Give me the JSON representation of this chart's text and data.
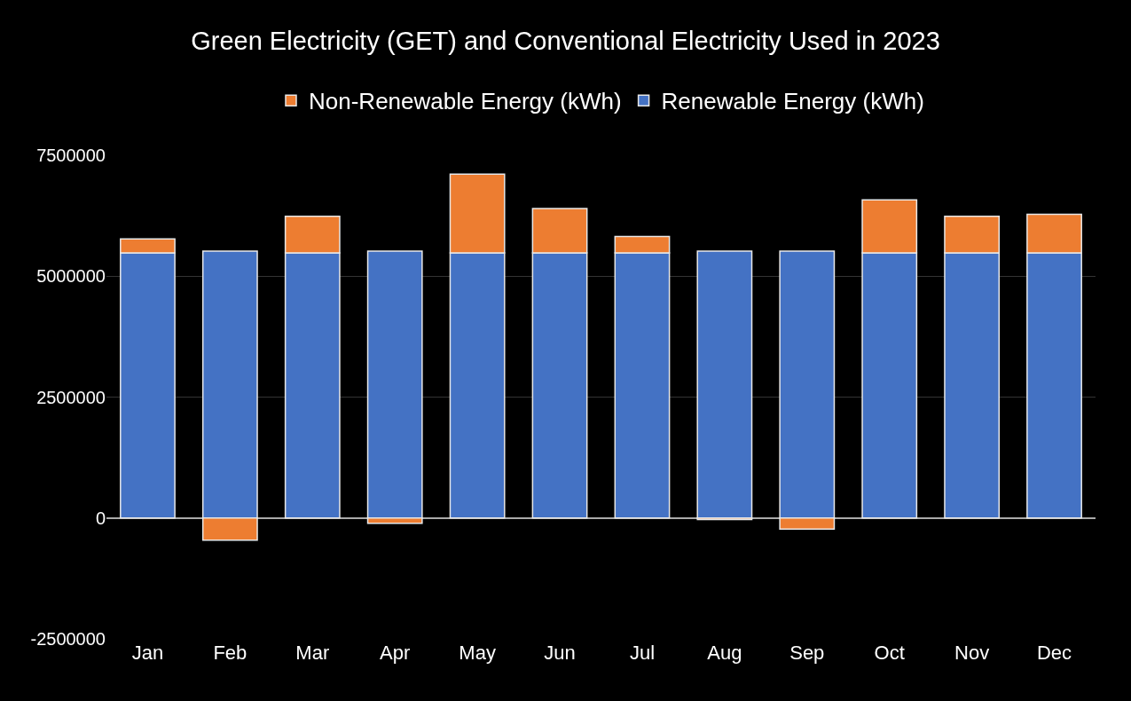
{
  "chart_data": {
    "type": "bar",
    "title": "Green Electricity (GET) and Conventional Electricity Used in 2023",
    "categories": [
      "Jan",
      "Feb",
      "Mar",
      "Apr",
      "May",
      "Jun",
      "Jul",
      "Aug",
      "Sep",
      "Oct",
      "Nov",
      "Dec"
    ],
    "series": [
      {
        "name": "Renewable Energy (kWh)",
        "color": "#4472c4",
        "values": [
          5480000,
          5520000,
          5480000,
          5520000,
          5480000,
          5480000,
          5480000,
          5520000,
          5520000,
          5480000,
          5480000,
          5480000
        ]
      },
      {
        "name": "Non-Renewable Energy (kWh)",
        "color": "#ed7d31",
        "values": [
          290000,
          -460000,
          760000,
          -110000,
          1630000,
          920000,
          340000,
          -30000,
          -230000,
          1100000,
          760000,
          800000
        ]
      }
    ],
    "stacked": true,
    "ylim": [
      -2500000,
      7500000
    ],
    "yticks": [
      -2500000,
      0,
      2500000,
      5000000,
      7500000
    ],
    "grid": "y",
    "legend": "top"
  }
}
